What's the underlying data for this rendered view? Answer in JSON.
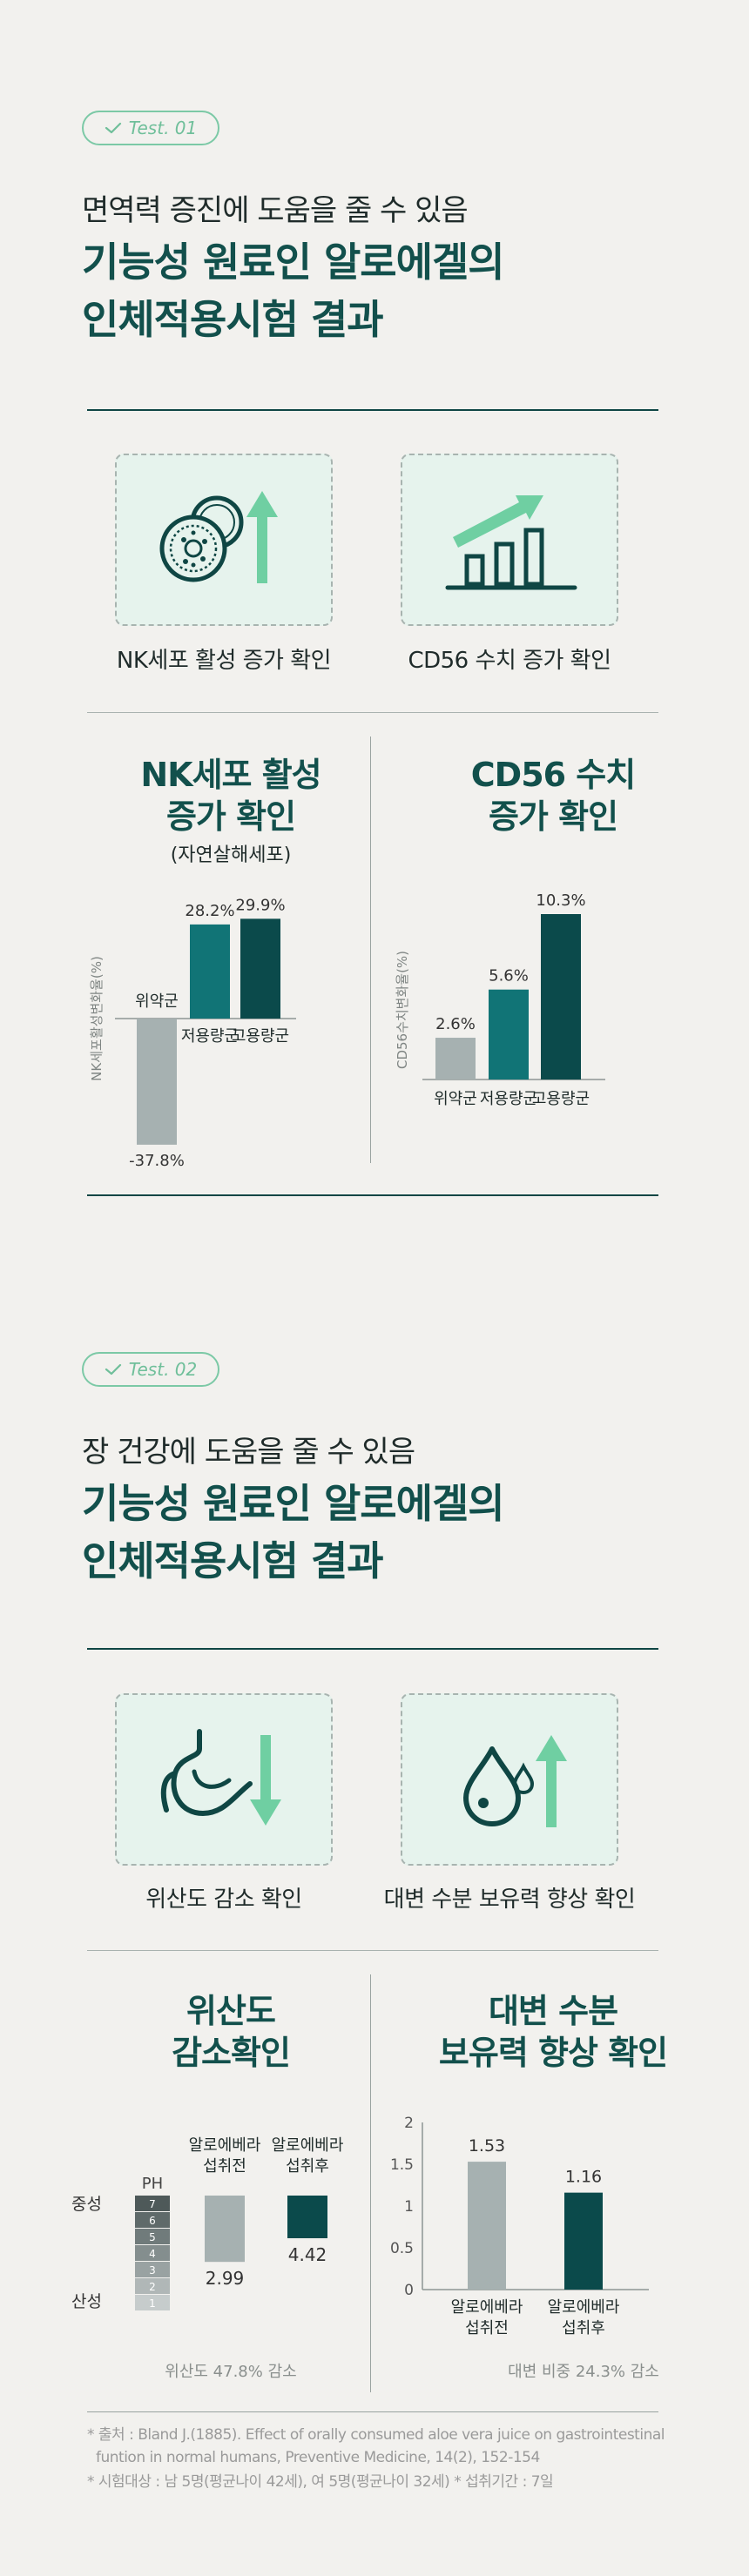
{
  "section1": {
    "badge": "Test. 01",
    "kicker": "면역력 증진에 도움을 줄 수 있음",
    "headline_line1": "기능성 원료인 알로에겔의",
    "headline_line2": "인체적용시험 결과",
    "icons": [
      {
        "icon": "nk-cell-up-icon",
        "label": "NK세포 활성 증가 확인"
      },
      {
        "icon": "cd56-bar-up-icon",
        "label": "CD56 수치 증가 확인"
      }
    ],
    "chart_left": {
      "title_line1": "NK세포 활성",
      "title_line2": "증가 확인",
      "subtitle": "(자연살해세포)"
    },
    "chart_right": {
      "title_line1": "CD56 수치",
      "title_line2": "증가 확인"
    }
  },
  "section2": {
    "badge": "Test. 02",
    "kicker": "장 건강에 도움을 줄 수 있음",
    "headline_line1": "기능성 원료인 알로에겔의",
    "headline_line2": "인체적용시험 결과",
    "icons": [
      {
        "icon": "stomach-down-icon",
        "label": "위산도 감소 확인"
      },
      {
        "icon": "water-drop-up-icon",
        "label": "대변 수분 보유력 향상 확인"
      }
    ],
    "chart_left": {
      "title_line1": "위산도",
      "title_line2": "감소확인",
      "note": "위산도 47.8% 감소"
    },
    "chart_right": {
      "title_line1": "대변 수분",
      "title_line2": "보유력 향상 확인",
      "note": "대변 비중 24.3% 감소"
    }
  },
  "footnotes": {
    "line1": "* 출처 : Bland J.(1885). Effect of orally consumed aloe vera juice on gastrointestinal",
    "line2": "funtion in normal humans, Preventive Medicine, 14(2), 152-154",
    "line3": "* 시험대상 : 남 5명(평균나이 42세), 여 5명(평균나이 32세)   * 섭취기간 : 7일"
  },
  "colors": {
    "placebo": "#a6b1b1",
    "low": "#117476",
    "high": "#0b4a4b",
    "accent": "#6fcfa2"
  },
  "chart_data": [
    {
      "type": "bar",
      "ylabel": "NK세포활성변화율(%)",
      "categories": [
        "위약군",
        "저용량군",
        "고용량군"
      ],
      "value_labels": [
        "-37.8%",
        "28.2%",
        "29.9%"
      ],
      "values": [
        -37.8,
        28.2,
        29.9
      ]
    },
    {
      "type": "bar",
      "ylabel": "CD56수치변화율(%)",
      "categories": [
        "위약군",
        "저용량군",
        "고용량군"
      ],
      "value_labels": [
        "2.6%",
        "5.6%",
        "10.3%"
      ],
      "values": [
        2.6,
        5.6,
        10.3
      ]
    },
    {
      "type": "bar",
      "scale_label": "PH",
      "scale_ticks": [
        "7",
        "6",
        "5",
        "4",
        "3",
        "2",
        "1"
      ],
      "scale_ends": {
        "top": "중성",
        "bottom": "산성"
      },
      "categories": [
        "알로에베라\n섭취전",
        "알로에베라\n섭취후"
      ],
      "category_lines": [
        [
          "알로에베라",
          "섭취전"
        ],
        [
          "알로에베라",
          "섭취후"
        ]
      ],
      "value_labels": [
        "2.99",
        "4.42"
      ],
      "values": [
        2.99,
        4.42
      ]
    },
    {
      "type": "bar",
      "y_ticks": [
        "2",
        "1.5",
        "1",
        "0.5",
        "0"
      ],
      "ylim": [
        0,
        2
      ],
      "categories": [
        "알로에베라\n섭취전",
        "알로에베라\n섭취후"
      ],
      "category_lines": [
        [
          "알로에베라",
          "섭취전"
        ],
        [
          "알로에베라",
          "섭취후"
        ]
      ],
      "value_labels": [
        "1.53",
        "1.16"
      ],
      "values": [
        1.53,
        1.16
      ]
    }
  ]
}
